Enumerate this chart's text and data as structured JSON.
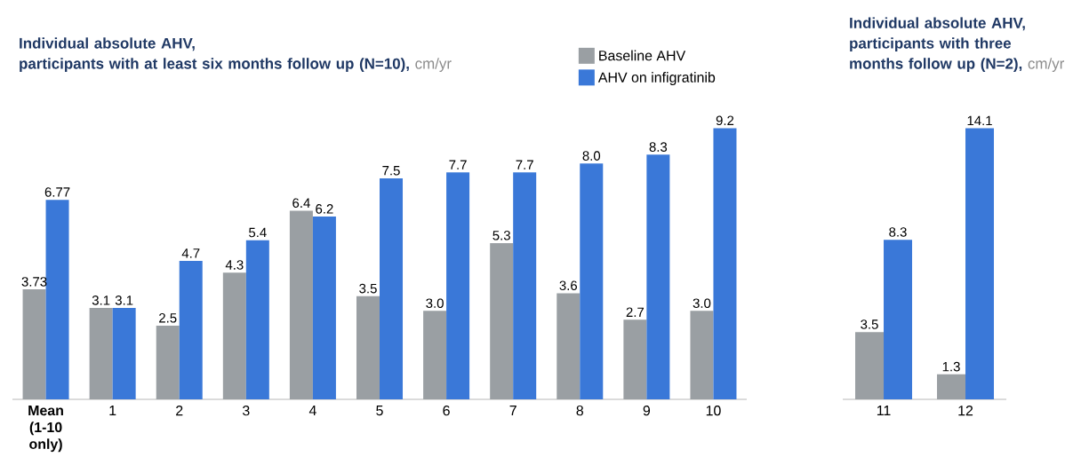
{
  "chart_data": [
    {
      "type": "bar",
      "title": "Individual absolute AHV,",
      "subtitle": "participants with at least six months follow up (N=10),",
      "ylabel": "cm/yr",
      "categories": [
        "**Mean (1-10 only)**",
        "1",
        "2",
        "3",
        "4",
        "5",
        "6",
        "7",
        "8",
        "9",
        "10"
      ],
      "series": [
        {
          "name": "Baseline AHV",
          "color": "#9a9fa3",
          "values": [
            3.73,
            3.1,
            2.5,
            4.3,
            6.4,
            3.5,
            3.0,
            5.3,
            3.6,
            2.7,
            3.0
          ],
          "value_labels": [
            "3.73",
            "3.1",
            "2.5",
            "4.3",
            "6.4",
            "3.5",
            "3.0",
            "5.3",
            "3.6",
            "2.7",
            "3.0"
          ]
        },
        {
          "name": "AHV on infigratinib",
          "color": "#3a78d8",
          "values": [
            6.77,
            3.1,
            4.7,
            5.4,
            6.2,
            7.5,
            7.7,
            7.7,
            8.0,
            8.3,
            9.2
          ],
          "value_labels": [
            "6.77",
            "3.1",
            "4.7",
            "5.4",
            "6.2",
            "7.5",
            "7.7",
            "7.7",
            "8.0",
            "8.3",
            "9.2"
          ]
        }
      ],
      "legend": "top right"
    },
    {
      "type": "bar",
      "title": "Individual absolute AHV,",
      "subtitle": "participants with three months follow up (N=2),",
      "ylabel": "cm/yr",
      "categories": [
        "11",
        "12"
      ],
      "series": [
        {
          "color": "#9a9fa3",
          "values": [
            3.5,
            1.3
          ],
          "value_labels": [
            "3.5",
            "1.3"
          ]
        },
        {
          "color": "#3a78d8",
          "values": [
            8.3,
            14.1
          ],
          "value_labels": [
            "8.3",
            "14.1"
          ]
        }
      ]
    }
  ]
}
